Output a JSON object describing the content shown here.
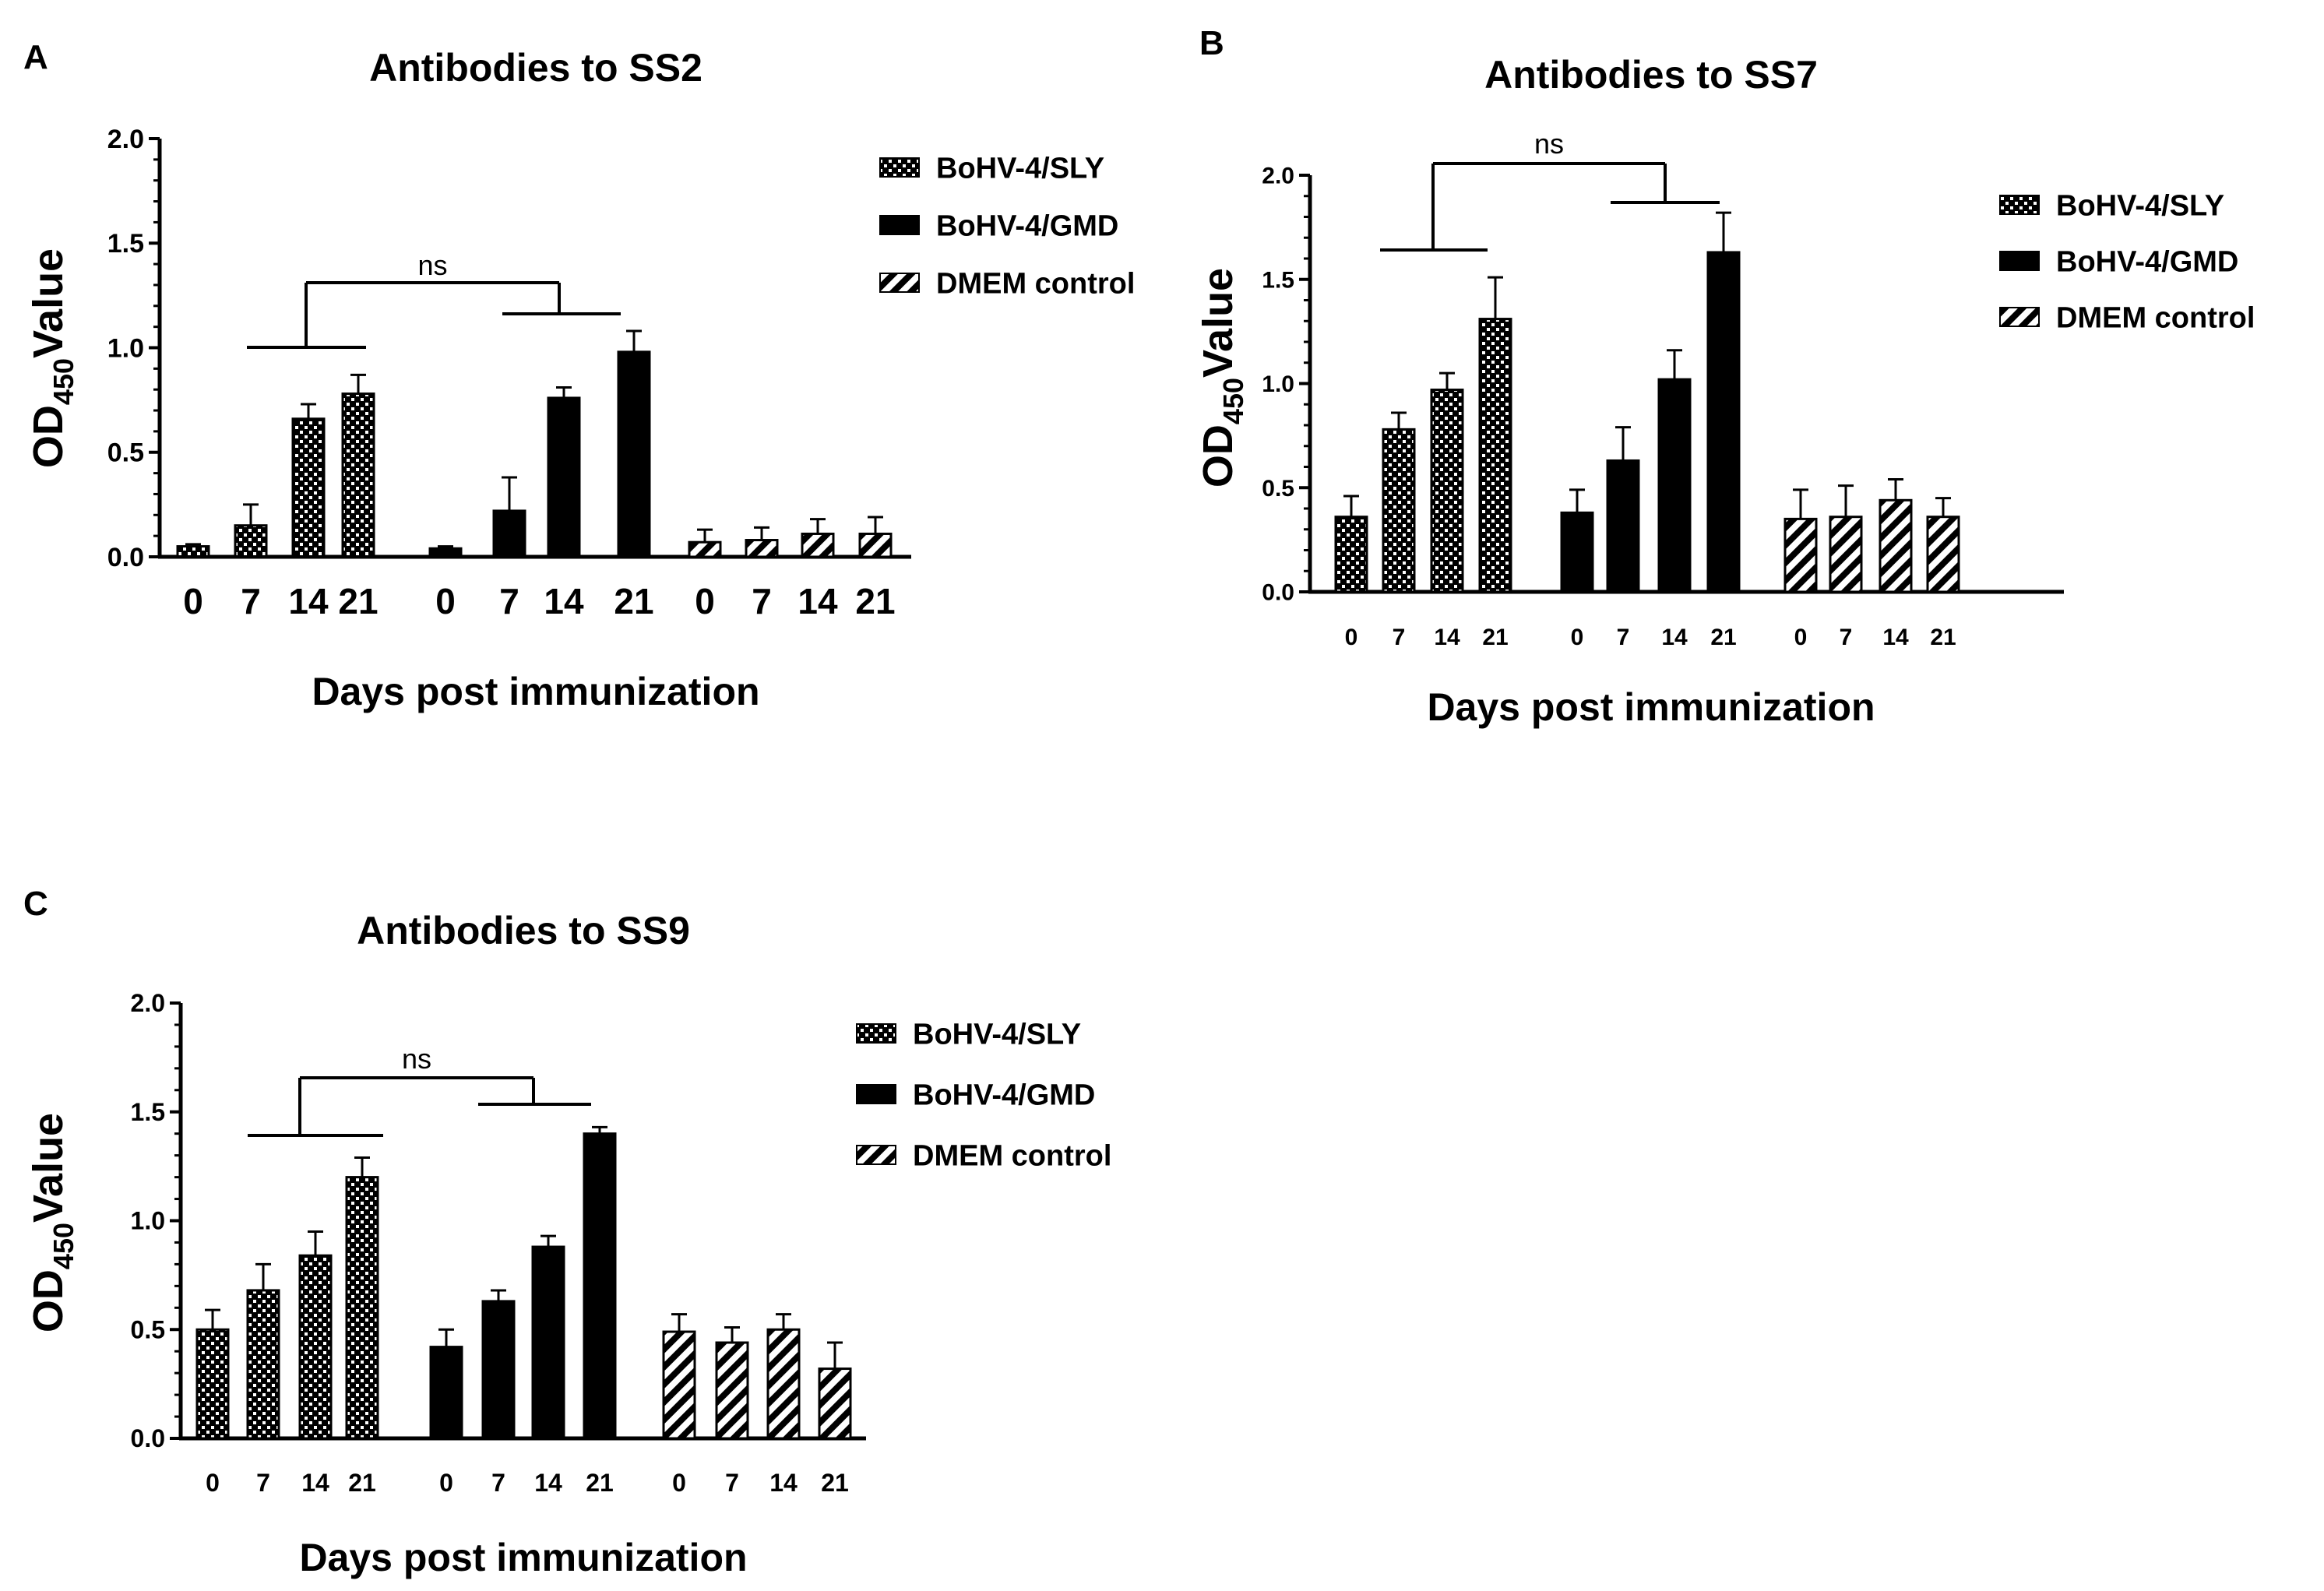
{
  "figure": {
    "series_names": [
      "BoHV-4/SLY",
      "BoHV-4/GMD",
      "DMEM control"
    ],
    "series_patterns": [
      "checker",
      "solid",
      "diagonal"
    ],
    "bar_color": "#000000",
    "background": "#ffffff"
  },
  "chart_data": [
    {
      "panel_label": "A",
      "type": "bar",
      "title": "Antibodies to SS2",
      "xlabel": "Days post immunization",
      "ylabel_main": "OD",
      "ylabel_sub": "450",
      "ylabel_tail": "Value",
      "ylim": [
        0,
        2.0
      ],
      "yticks": [
        "0.0",
        "0.5",
        "1.0",
        "1.5",
        "2.0"
      ],
      "categories": [
        "0",
        "7",
        "14",
        "21"
      ],
      "tick_labels": [
        "0",
        "7",
        "14",
        "21",
        "0",
        "7",
        "14",
        "21",
        "0",
        "7",
        "14",
        "21"
      ],
      "series": [
        {
          "name": "BoHV-4/SLY",
          "values": [
            0.05,
            0.15,
            0.66,
            0.78
          ],
          "errors": [
            0.01,
            0.1,
            0.07,
            0.09
          ]
        },
        {
          "name": "BoHV-4/GMD",
          "values": [
            0.04,
            0.22,
            0.76,
            0.98
          ],
          "errors": [
            0.01,
            0.16,
            0.05,
            0.1
          ]
        },
        {
          "name": "DMEM control",
          "values": [
            0.07,
            0.08,
            0.11,
            0.11
          ],
          "errors": [
            0.06,
            0.06,
            0.07,
            0.08
          ]
        }
      ],
      "annotation": "ns"
    },
    {
      "panel_label": "B",
      "type": "bar",
      "title": "Antibodies to SS7",
      "xlabel": "Days post immunization",
      "ylabel_main": "OD",
      "ylabel_sub": "450",
      "ylabel_tail": "Value",
      "ylim": [
        0,
        2.0
      ],
      "yticks": [
        "0.0",
        "0.5",
        "1.0",
        "1.5",
        "2.0"
      ],
      "categories": [
        "0",
        "7",
        "14",
        "21"
      ],
      "tick_labels": [
        "0",
        "7",
        "14",
        "21",
        "0",
        "7",
        "14",
        "21",
        "0",
        "7",
        "14",
        "21"
      ],
      "series": [
        {
          "name": "BoHV-4/SLY",
          "values": [
            0.36,
            0.78,
            0.97,
            1.31
          ],
          "errors": [
            0.1,
            0.08,
            0.08,
            0.2
          ]
        },
        {
          "name": "BoHV-4/GMD",
          "values": [
            0.38,
            0.63,
            1.02,
            1.63
          ],
          "errors": [
            0.11,
            0.16,
            0.14,
            0.19
          ]
        },
        {
          "name": "DMEM control",
          "values": [
            0.35,
            0.36,
            0.44,
            0.36
          ],
          "errors": [
            0.14,
            0.15,
            0.1,
            0.09
          ]
        }
      ],
      "annotation": "ns"
    },
    {
      "panel_label": "C",
      "type": "bar",
      "title": "Antibodies to SS9",
      "xlabel": "Days post immunization",
      "ylabel_main": "OD",
      "ylabel_sub": "450",
      "ylabel_tail": "Value",
      "ylim": [
        0,
        2.0
      ],
      "yticks": [
        "0.0",
        "0.5",
        "1.0",
        "1.5",
        "2.0"
      ],
      "categories": [
        "0",
        "7",
        "14",
        "21"
      ],
      "tick_labels": [
        "0",
        "7",
        "14",
        "21",
        "0",
        "7",
        "14",
        "21",
        "0",
        "7",
        "14",
        "21"
      ],
      "series": [
        {
          "name": "BoHV-4/SLY",
          "values": [
            0.5,
            0.68,
            0.84,
            1.2
          ],
          "errors": [
            0.09,
            0.12,
            0.11,
            0.09
          ]
        },
        {
          "name": "BoHV-4/GMD",
          "values": [
            0.42,
            0.63,
            0.88,
            1.4
          ],
          "errors": [
            0.08,
            0.05,
            0.05,
            0.03
          ]
        },
        {
          "name": "DMEM control",
          "values": [
            0.49,
            0.44,
            0.5,
            0.32
          ],
          "errors": [
            0.08,
            0.07,
            0.07,
            0.12
          ]
        }
      ],
      "annotation": "ns"
    }
  ]
}
